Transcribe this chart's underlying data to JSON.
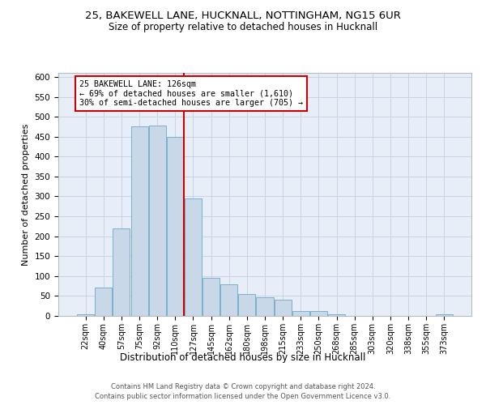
{
  "title_line1": "25, BAKEWELL LANE, HUCKNALL, NOTTINGHAM, NG15 6UR",
  "title_line2": "Size of property relative to detached houses in Hucknall",
  "xlabel": "Distribution of detached houses by size in Hucknall",
  "ylabel": "Number of detached properties",
  "bar_labels": [
    "22sqm",
    "40sqm",
    "57sqm",
    "75sqm",
    "92sqm",
    "110sqm",
    "127sqm",
    "145sqm",
    "162sqm",
    "180sqm",
    "198sqm",
    "215sqm",
    "233sqm",
    "250sqm",
    "268sqm",
    "285sqm",
    "303sqm",
    "320sqm",
    "338sqm",
    "355sqm",
    "373sqm"
  ],
  "bar_values": [
    5,
    72,
    220,
    475,
    478,
    450,
    295,
    95,
    80,
    54,
    47,
    40,
    13,
    12,
    5,
    0,
    0,
    0,
    0,
    0,
    5
  ],
  "bar_color": "#c8d8e8",
  "bar_edge_color": "#7ab0cc",
  "vline_x_index": 5.5,
  "vline_color": "#cc0000",
  "annotation_text": "25 BAKEWELL LANE: 126sqm\n← 69% of detached houses are smaller (1,610)\n30% of semi-detached houses are larger (705) →",
  "annotation_box_color": "#ffffff",
  "annotation_box_edge": "#cc0000",
  "ylim": [
    0,
    610
  ],
  "yticks": [
    0,
    50,
    100,
    150,
    200,
    250,
    300,
    350,
    400,
    450,
    500,
    550,
    600
  ],
  "grid_color": "#c8d4e4",
  "background_color": "#e8eef8",
  "footer_line1": "Contains HM Land Registry data © Crown copyright and database right 2024.",
  "footer_line2": "Contains public sector information licensed under the Open Government Licence v3.0."
}
